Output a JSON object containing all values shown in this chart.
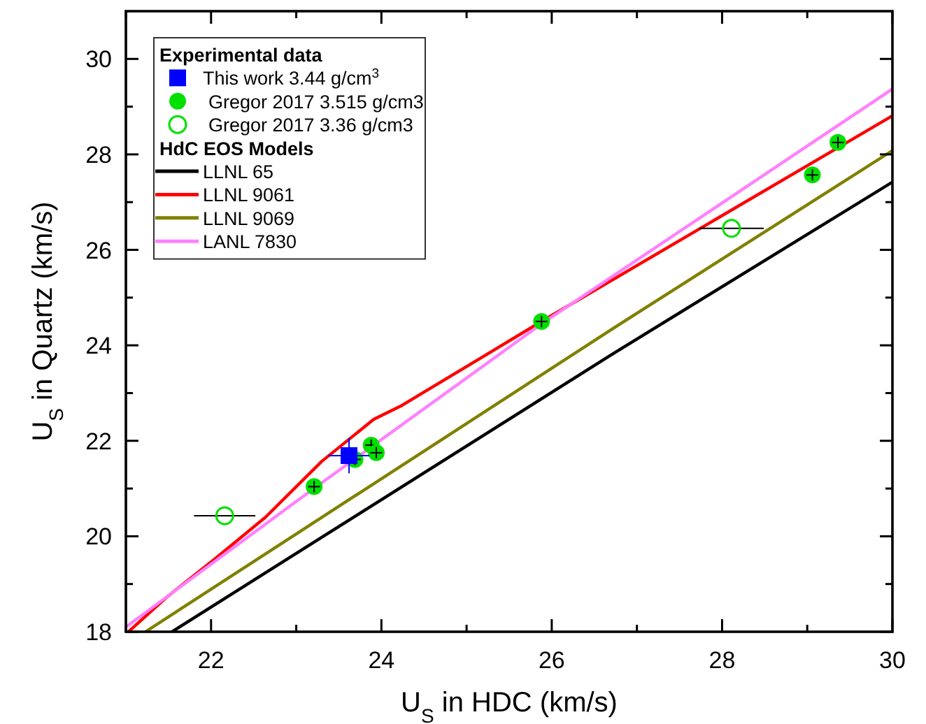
{
  "chart_data": {
    "type": "line",
    "xlabel": "U$_{S}$ in HDC (km/s)",
    "ylabel": "U$_{S}$ in Quartz (km/s)",
    "xlim": [
      21,
      30
    ],
    "ylim": [
      18,
      31
    ],
    "xticks": [
      {
        "value": 21,
        "label": null
      },
      22,
      {
        "value": 23,
        "label": null
      },
      24,
      {
        "value": 25,
        "label": null
      },
      26,
      {
        "value": 27,
        "label": null
      },
      28,
      {
        "value": 29,
        "label": null
      },
      30
    ],
    "yticks": [
      18,
      {
        "value": 19,
        "label": null
      },
      20,
      {
        "value": 21,
        "label": null
      },
      22,
      {
        "value": 23,
        "label": null
      },
      24,
      {
        "value": 25,
        "label": null
      },
      26,
      {
        "value": 27,
        "label": null
      },
      28,
      {
        "value": 29,
        "label": null
      },
      30
    ],
    "grid": false,
    "legend": "top left",
    "legend_title": "Experimental data",
    "annotations": [
      "HdC EOS Models"
    ],
    "series": [
      {
        "name": "This work 3.44 g/cm$^{3}$",
        "type": "scatter",
        "marker": "square",
        "color": "#0000ff",
        "x": [
          23.62
        ],
        "values": [
          21.69
        ],
        "errors": [
          0.37
        ],
        "xerrors": [
          0.24
        ]
      },
      {
        "name": "Gregor 2017 3.515 g/cm3",
        "type": "scatter",
        "marker": "circle",
        "color": "#00e000",
        "x": [
          23.21,
          23.69,
          23.88,
          23.94,
          25.88,
          29.06,
          29.36
        ],
        "values": [
          21.04,
          21.61,
          21.91,
          21.75,
          24.5,
          27.57,
          28.25
        ],
        "errors": [
          0.12,
          0.12,
          0.12,
          0.12,
          0.12,
          0.12,
          0.12
        ],
        "xerrors": [
          0.07,
          0.07,
          0.07,
          0.07,
          0.07,
          0.07,
          0.07
        ]
      },
      {
        "name": "Gregor 2017 3.36 g/cm3",
        "type": "scatter",
        "marker": "circle",
        "color": "#00e000",
        "x": [
          22.16,
          28.11
        ],
        "values": [
          20.43,
          26.45
        ],
        "xerrors": [
          0.36,
          0.38
        ]
      },
      {
        "name": "LLNL 65",
        "color": "#000000",
        "x": [
          21.54,
          26.76,
          30
        ],
        "values": [
          18,
          23.87,
          27.42
        ]
      },
      {
        "name": "LLNL 9061",
        "color": "#ff0000",
        "x": [
          21.03,
          21.49,
          22.04,
          22.64,
          23.3,
          23.91,
          24.24,
          25.88,
          30
        ],
        "values": [
          18,
          18.74,
          19.52,
          20.4,
          21.57,
          22.45,
          22.74,
          24.5,
          28.81
        ]
      },
      {
        "name": "LLNL 9069",
        "color": "#808000",
        "x": [
          21.23,
          26.76,
          30
        ],
        "values": [
          18,
          24.4,
          28.08
        ]
      },
      {
        "name": "LANL 7830",
        "color": "#ff80ff",
        "x": [
          21,
          23.19,
          25.88,
          30
        ],
        "values": [
          18.1,
          20.98,
          24.45,
          29.37
        ]
      }
    ]
  }
}
